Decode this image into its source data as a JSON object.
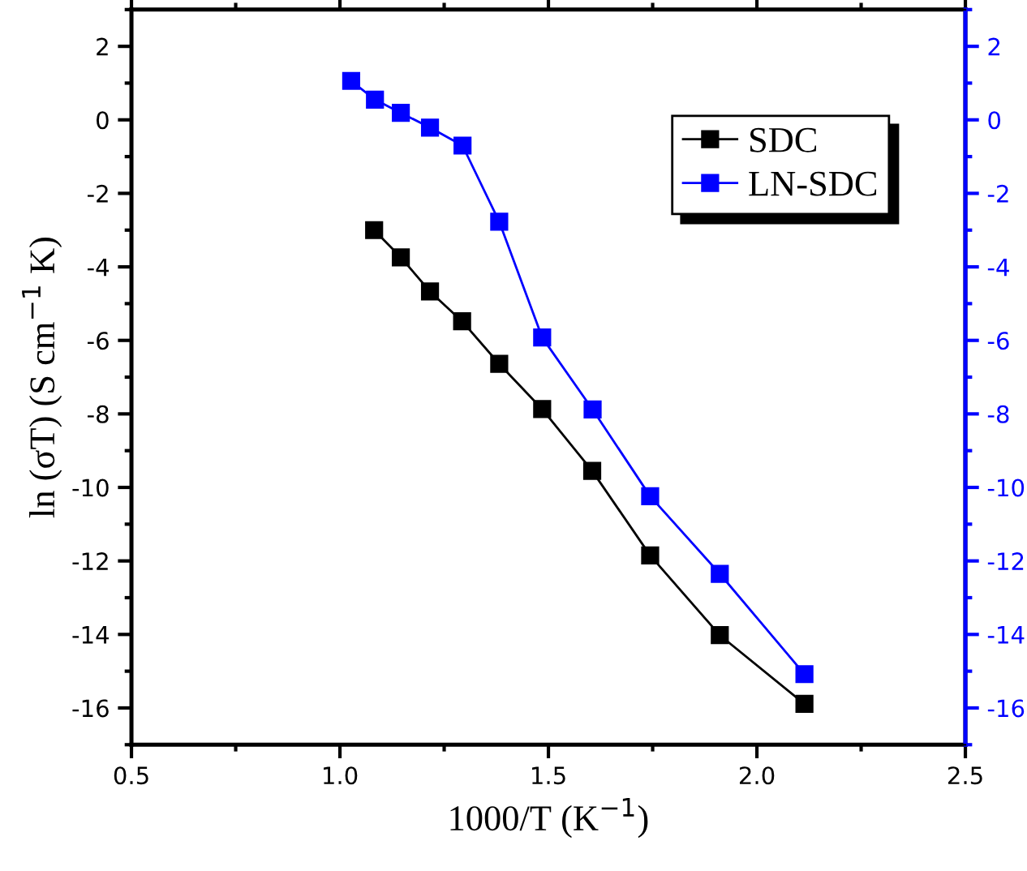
{
  "chart_data": {
    "type": "line",
    "xlabel": "1000/T (K$^{−1}$)",
    "ylabel": "ln (σT) (S cm$^{−1}$ K)",
    "xlim": [
      0.5,
      2.5
    ],
    "xticks": [
      0.5,
      {
        "value": 0.75,
        "label": null
      },
      {
        "value": 1.0,
        "label": "1.0"
      },
      {
        "value": 1.25,
        "label": null
      },
      1.5,
      {
        "value": 1.75,
        "label": null
      },
      {
        "value": 2.0,
        "label": "2.0"
      },
      {
        "value": 2.25,
        "label": null
      },
      2.5
    ],
    "ylim": [
      -17,
      3
    ],
    "yticks": [
      {
        "value": -17,
        "label": null
      },
      -16,
      {
        "value": -15,
        "label": null
      },
      -14,
      {
        "value": -13,
        "label": null
      },
      -12,
      {
        "value": -11,
        "label": null
      },
      -10,
      {
        "value": -9,
        "label": null
      },
      -8,
      {
        "value": -7,
        "label": null
      },
      -6,
      {
        "value": -5,
        "label": null
      },
      -4,
      {
        "value": -3,
        "label": null
      },
      -2,
      {
        "value": -1,
        "label": null
      },
      0,
      {
        "value": 1,
        "label": null
      },
      2,
      {
        "value": 3,
        "label": null
      }
    ],
    "y2lim": [
      -17,
      3
    ],
    "y2ticks": [
      {
        "value": -17,
        "label": null
      },
      -16,
      {
        "value": -15,
        "label": null
      },
      -14,
      {
        "value": -13,
        "label": null
      },
      -12,
      {
        "value": -11,
        "label": null
      },
      -10,
      {
        "value": -9,
        "label": null
      },
      -8,
      {
        "value": -7,
        "label": null
      },
      -6,
      {
        "value": -5,
        "label": null
      },
      -4,
      {
        "value": -3,
        "label": null
      },
      -2,
      {
        "value": -1,
        "label": null
      },
      0,
      {
        "value": 1,
        "label": null
      },
      2,
      {
        "value": 3,
        "label": null
      }
    ],
    "marker": "square",
    "line_style": "solid",
    "grid": false,
    "legend": "top right",
    "series": [
      {
        "name": "SDC",
        "color": "#000000",
        "x": [
          1.082,
          1.146,
          1.216,
          1.293,
          1.382,
          1.485,
          1.605,
          1.744,
          1.911,
          2.114
        ],
        "values": [
          -3.0,
          -3.74,
          -4.67,
          -5.48,
          -6.64,
          -7.87,
          -9.55,
          -11.85,
          -14.02,
          -15.89
        ]
      },
      {
        "name": "LN-SDC",
        "color": "#0000ff",
        "axis": "y2",
        "x": [
          1.027,
          1.084,
          1.146,
          1.216,
          1.294,
          1.382,
          1.485,
          1.606,
          1.744,
          1.911,
          2.114
        ],
        "values": [
          1.06,
          0.55,
          0.19,
          -0.21,
          -0.7,
          -2.77,
          -5.92,
          -7.88,
          -10.24,
          -12.35,
          -15.08
        ]
      }
    ]
  }
}
